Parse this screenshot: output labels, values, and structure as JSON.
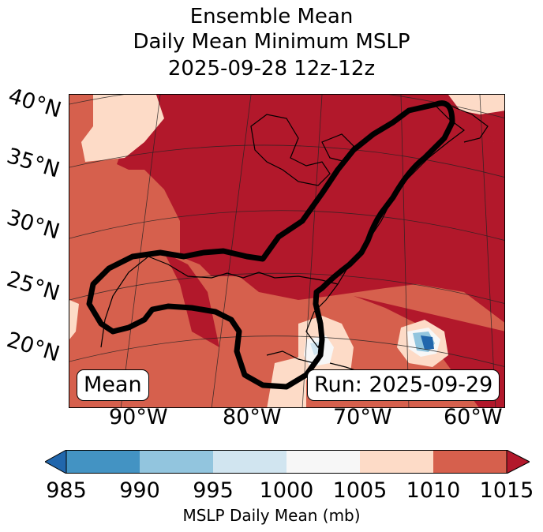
{
  "title": {
    "line1": "Ensemble Mean",
    "line2": "Daily Mean Minimum MSLP",
    "line3": "2025-09-28 12z-12z"
  },
  "map": {
    "lat_labels": [
      "40°N",
      "35°N",
      "30°N",
      "25°N",
      "20°N"
    ],
    "lon_labels": [
      "90°W",
      "80°W",
      "70°W",
      "60°W"
    ],
    "left_box": "Mean",
    "right_box": "Run: 2025-09-29"
  },
  "colorbar": {
    "ticks": [
      "985",
      "990",
      "995",
      "1000",
      "1005",
      "1010",
      "1015"
    ],
    "label": "MSLP Daily Mean (mb)",
    "colors": [
      "#2166ac",
      "#4393c3",
      "#92c5de",
      "#d1e5f0",
      "#f7f7f7",
      "#fddbc7",
      "#d6604d",
      "#b2182b"
    ]
  }
}
